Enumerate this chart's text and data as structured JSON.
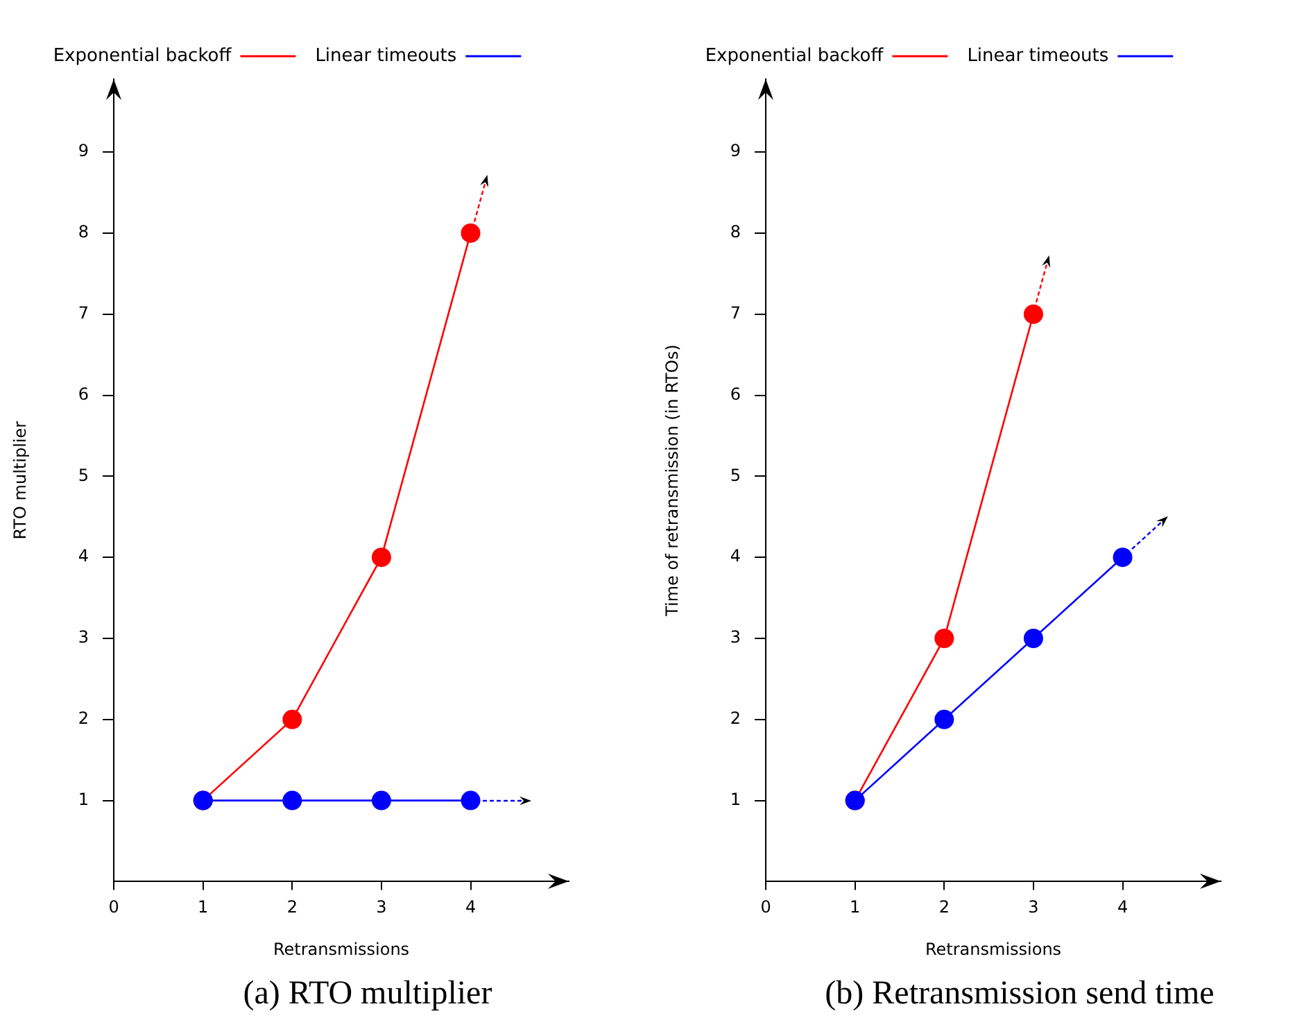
{
  "chart_data": [
    {
      "type": "line",
      "title": "(a) RTO multiplier",
      "xlabel": "Retransmissions",
      "ylabel": "RTO multiplier",
      "x": [
        1,
        2,
        3,
        4
      ],
      "xlim": [
        0,
        5.1
      ],
      "xticks": [
        0,
        1,
        2,
        3,
        4
      ],
      "ylim": [
        0,
        9.9
      ],
      "yticks": [
        1,
        2,
        3,
        4,
        5,
        6,
        7,
        8,
        9
      ],
      "legend": "top",
      "marker": "circle",
      "series": [
        {
          "name": "Exponential backoff",
          "color": "#ff0000",
          "values": [
            1,
            2,
            4,
            8
          ]
        },
        {
          "name": "Linear timeouts",
          "color": "#0000ff",
          "values": [
            1,
            1,
            1,
            1
          ]
        }
      ]
    },
    {
      "type": "line",
      "title": "(b) Retransmission send time",
      "xlabel": "Retransmissions",
      "ylabel": "Time of retransmission (in RTOs)",
      "x": [
        1,
        2,
        3,
        4
      ],
      "xlim": [
        0,
        5.1
      ],
      "xticks": [
        0,
        1,
        2,
        3,
        4
      ],
      "ylim": [
        0,
        9.9
      ],
      "yticks": [
        1,
        2,
        3,
        4,
        5,
        6,
        7,
        8,
        9
      ],
      "legend": "top",
      "marker": "circle",
      "series": [
        {
          "name": "Exponential backoff",
          "color": "#ff0000",
          "values": [
            1,
            3,
            7,
            null
          ]
        },
        {
          "name": "Linear timeouts",
          "color": "#0000ff",
          "values": [
            1,
            2,
            3,
            4
          ]
        }
      ]
    }
  ]
}
